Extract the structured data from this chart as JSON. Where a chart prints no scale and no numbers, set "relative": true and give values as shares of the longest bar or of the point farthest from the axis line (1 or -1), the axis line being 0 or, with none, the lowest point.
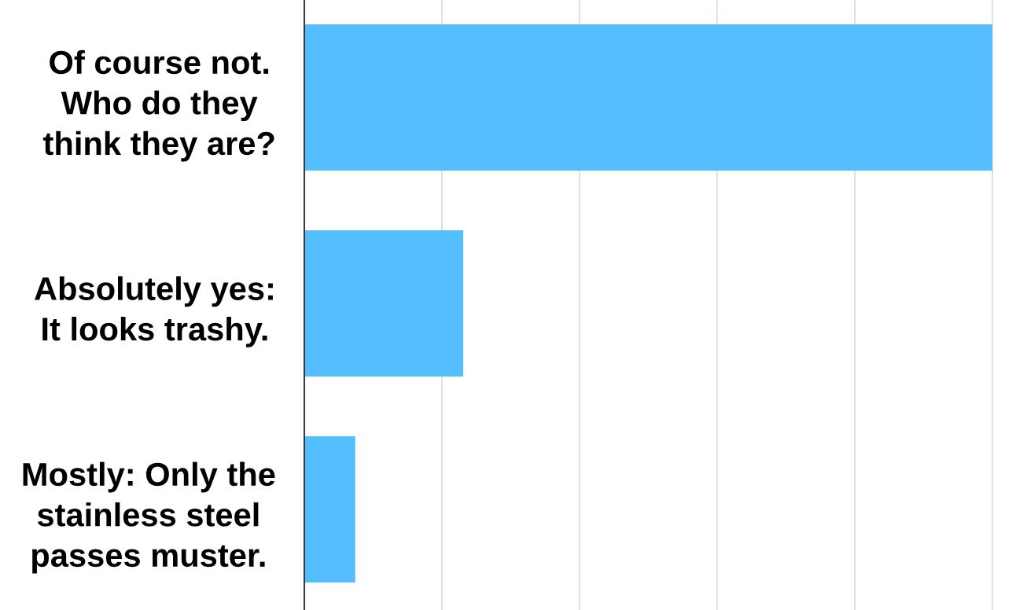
{
  "chart_data": {
    "type": "bar",
    "orientation": "horizontal",
    "relative": true,
    "categories": [
      "Of course not.\nWho do they\nthink they are?",
      "Absolutely yes:\nIt looks trashy.",
      "Mostly: Only the\nstainless steel\npasses muster."
    ],
    "values": [
      1.0,
      0.231,
      0.074
    ],
    "color": "#55befe",
    "grid": "x",
    "tick_labels": "y"
  }
}
